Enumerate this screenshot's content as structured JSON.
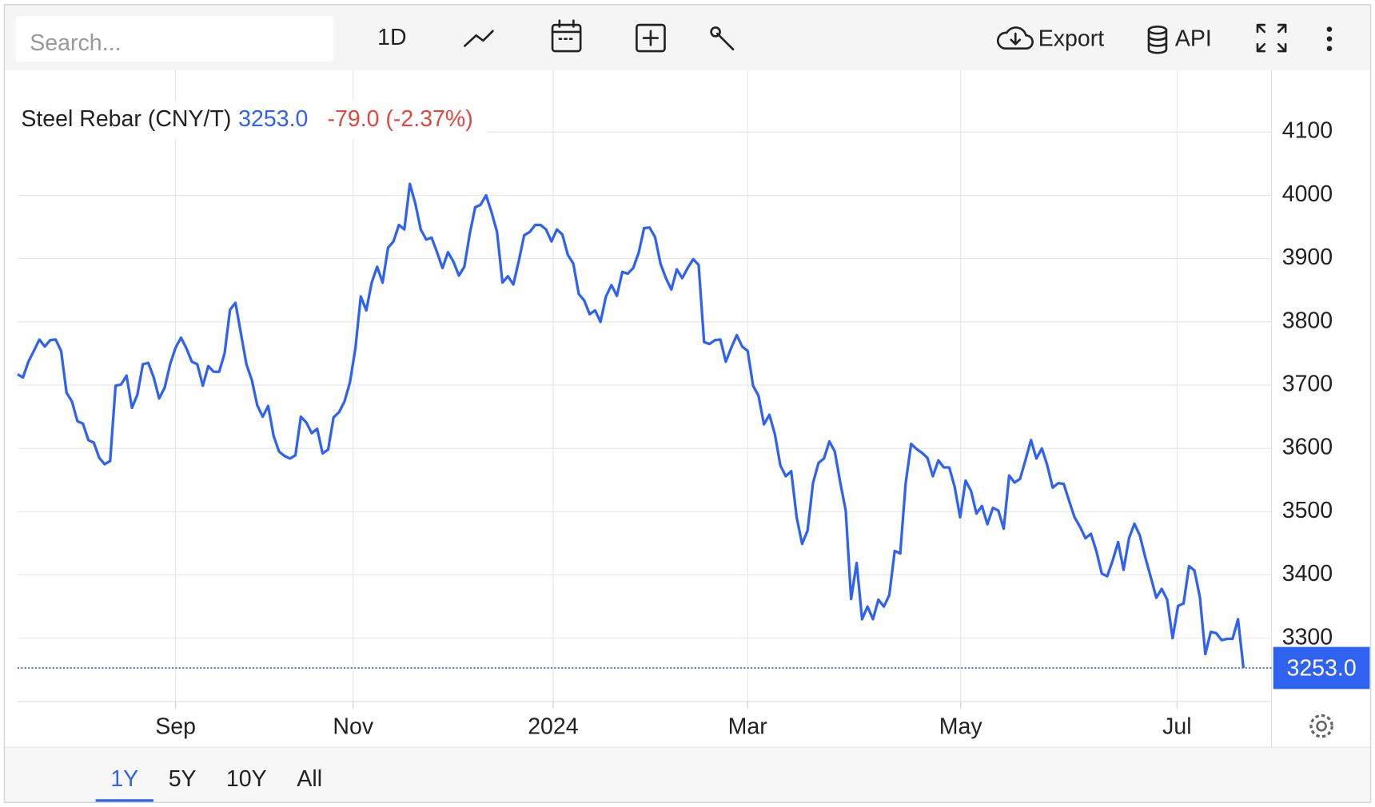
{
  "ui": {
    "search_placeholder": "Search...",
    "interval": "1D",
    "export": "Export",
    "api": "API",
    "ranges": [
      "1Y",
      "5Y",
      "10Y",
      "All"
    ],
    "selected_range": "1Y"
  },
  "chart_data": {
    "type": "line",
    "series": [
      {
        "name": "Steel Rebar (CNY/T)",
        "color": "#2f62f0",
        "values": [
          3717,
          3712,
          3737,
          3754,
          3772,
          3761,
          3771,
          3772,
          3754,
          3688,
          3674,
          3643,
          3639,
          3613,
          3609,
          3585,
          3575,
          3580,
          3699,
          3701,
          3715,
          3664,
          3685,
          3733,
          3735,
          3712,
          3679,
          3696,
          3733,
          3759,
          3775,
          3758,
          3737,
          3733,
          3699,
          3730,
          3721,
          3721,
          3750,
          3819,
          3830,
          3782,
          3733,
          3708,
          3668,
          3650,
          3667,
          3620,
          3595,
          3588,
          3584,
          3589,
          3650,
          3641,
          3624,
          3631,
          3592,
          3598,
          3649,
          3657,
          3674,
          3704,
          3757,
          3840,
          3818,
          3862,
          3887,
          3862,
          3917,
          3927,
          3953,
          3946,
          4018,
          3987,
          3946,
          3930,
          3933,
          3910,
          3885,
          3910,
          3895,
          3873,
          3887,
          3939,
          3981,
          3985,
          4000,
          3973,
          3942,
          3862,
          3872,
          3859,
          3896,
          3937,
          3942,
          3953,
          3953,
          3946,
          3927,
          3946,
          3938,
          3906,
          3892,
          3844,
          3834,
          3812,
          3818,
          3800,
          3840,
          3858,
          3841,
          3879,
          3876,
          3885,
          3909,
          3948,
          3949,
          3934,
          3892,
          3869,
          3851,
          3883,
          3869,
          3885,
          3899,
          3890,
          3768,
          3765,
          3771,
          3772,
          3737,
          3759,
          3779,
          3761,
          3754,
          3699,
          3683,
          3638,
          3653,
          3622,
          3573,
          3556,
          3564,
          3491,
          3449,
          3470,
          3545,
          3577,
          3584,
          3611,
          3595,
          3546,
          3502,
          3362,
          3419,
          3330,
          3350,
          3330,
          3361,
          3350,
          3368,
          3438,
          3434,
          3545,
          3607,
          3599,
          3593,
          3585,
          3556,
          3581,
          3570,
          3570,
          3539,
          3491,
          3549,
          3533,
          3497,
          3509,
          3480,
          3506,
          3502,
          3473,
          3557,
          3546,
          3552,
          3582,
          3613,
          3584,
          3600,
          3573,
          3538,
          3545,
          3544,
          3517,
          3491,
          3476,
          3458,
          3465,
          3438,
          3402,
          3398,
          3423,
          3452,
          3408,
          3458,
          3481,
          3462,
          3427,
          3396,
          3364,
          3378,
          3361,
          3300,
          3351,
          3355,
          3414,
          3407,
          3365,
          3275,
          3310,
          3308,
          3297,
          3299,
          3299,
          3330,
          3253
        ]
      }
    ],
    "last": {
      "value": 3253,
      "label": "3253.0"
    },
    "change": "-79.0 (-2.37%)",
    "xlim": [
      0,
      225
    ],
    "xticks": [
      {
        "value": 29,
        "label": "Sep"
      },
      {
        "value": 61.6,
        "label": "Nov"
      },
      {
        "value": 98.3,
        "label": "2024"
      },
      {
        "value": 134,
        "label": "Mar"
      },
      {
        "value": 173.1,
        "label": "May"
      },
      {
        "value": 212.8,
        "label": "Jul"
      }
    ],
    "ylim": [
      3200,
      4200
    ],
    "yticks": [
      3300,
      3400,
      3500,
      3600,
      3700,
      3800,
      3900,
      4000,
      4100
    ],
    "grid": true
  }
}
